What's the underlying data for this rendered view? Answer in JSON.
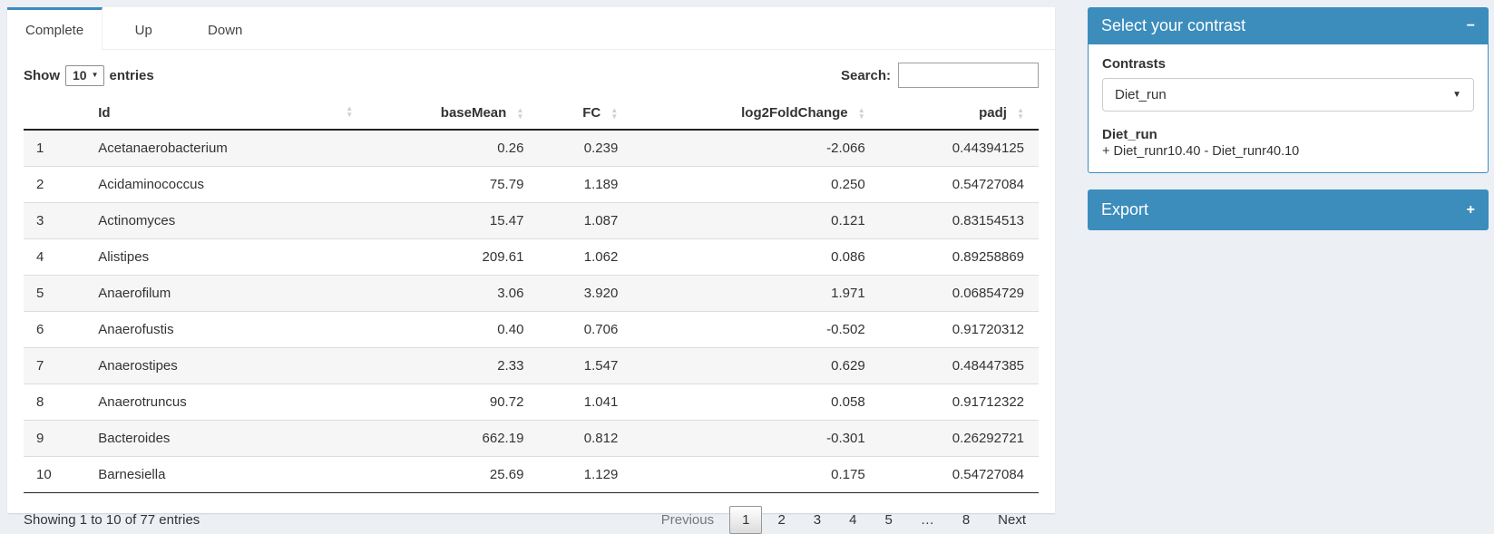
{
  "tabs": [
    {
      "label": "Complete",
      "active": true
    },
    {
      "label": "Up",
      "active": false
    },
    {
      "label": "Down",
      "active": false
    }
  ],
  "table_controls": {
    "show_label": "Show",
    "page_length": "10",
    "entries_label": "entries",
    "search_label": "Search:",
    "search_value": ""
  },
  "table": {
    "headers": {
      "id": "Id",
      "baseMean": "baseMean",
      "fc": "FC",
      "log2fc": "log2FoldChange",
      "padj": "padj"
    },
    "rows": [
      {
        "n": "1",
        "id": "Acetanaerobacterium",
        "baseMean": "0.26",
        "fc": "0.239",
        "log2fc": "-2.066",
        "padj": "0.44394125"
      },
      {
        "n": "2",
        "id": "Acidaminococcus",
        "baseMean": "75.79",
        "fc": "1.189",
        "log2fc": "0.250",
        "padj": "0.54727084"
      },
      {
        "n": "3",
        "id": "Actinomyces",
        "baseMean": "15.47",
        "fc": "1.087",
        "log2fc": "0.121",
        "padj": "0.83154513"
      },
      {
        "n": "4",
        "id": "Alistipes",
        "baseMean": "209.61",
        "fc": "1.062",
        "log2fc": "0.086",
        "padj": "0.89258869"
      },
      {
        "n": "5",
        "id": "Anaerofilum",
        "baseMean": "3.06",
        "fc": "3.920",
        "log2fc": "1.971",
        "padj": "0.06854729"
      },
      {
        "n": "6",
        "id": "Anaerofustis",
        "baseMean": "0.40",
        "fc": "0.706",
        "log2fc": "-0.502",
        "padj": "0.91720312"
      },
      {
        "n": "7",
        "id": "Anaerostipes",
        "baseMean": "2.33",
        "fc": "1.547",
        "log2fc": "0.629",
        "padj": "0.48447385"
      },
      {
        "n": "8",
        "id": "Anaerotruncus",
        "baseMean": "90.72",
        "fc": "1.041",
        "log2fc": "0.058",
        "padj": "0.91712322"
      },
      {
        "n": "9",
        "id": "Bacteroides",
        "baseMean": "662.19",
        "fc": "0.812",
        "log2fc": "-0.301",
        "padj": "0.26292721"
      },
      {
        "n": "10",
        "id": "Barnesiella",
        "baseMean": "25.69",
        "fc": "1.129",
        "log2fc": "0.175",
        "padj": "0.54727084"
      }
    ],
    "info": "Showing 1 to 10 of 77 entries"
  },
  "pagination": {
    "items": [
      {
        "label": "Previous",
        "state": "disabled"
      },
      {
        "label": "1",
        "state": "active"
      },
      {
        "label": "2",
        "state": ""
      },
      {
        "label": "3",
        "state": ""
      },
      {
        "label": "4",
        "state": ""
      },
      {
        "label": "5",
        "state": ""
      },
      {
        "label": "…",
        "state": "ellipsis"
      },
      {
        "label": "8",
        "state": ""
      },
      {
        "label": "Next",
        "state": ""
      }
    ]
  },
  "contrast_box": {
    "title": "Select your contrast",
    "contrasts_label": "Contrasts",
    "selected_contrast": "Diet_run",
    "contrast_name": "Diet_run",
    "contrast_formula": "+ Diet_runr10.40 - Diet_runr40.10"
  },
  "export_box": {
    "title": "Export"
  },
  "icons": {
    "collapse": "−",
    "expand": "+",
    "caret_down": "▼",
    "caret_small": "▼"
  },
  "colors": {
    "primary": "#3c8dbc",
    "page_bg": "#ecf0f5",
    "stripe": "#f6f6f6"
  }
}
